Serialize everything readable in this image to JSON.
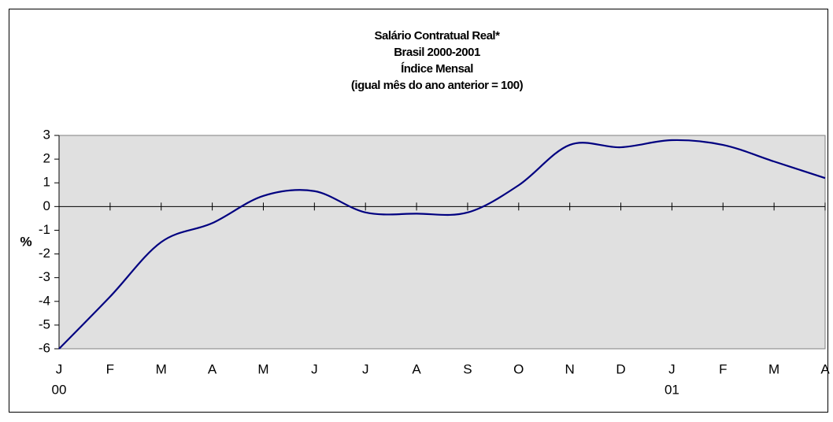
{
  "chart_data": {
    "type": "line",
    "title": [
      "Salário Contratual Real*",
      "Brasil 2000-2001",
      "Índice Mensal",
      "(igual mês do ano anterior = 100)"
    ],
    "y_label": "%",
    "categories": [
      "J",
      "F",
      "M",
      "A",
      "M",
      "J",
      "J",
      "A",
      "S",
      "O",
      "N",
      "D",
      "J",
      "F",
      "M",
      "A"
    ],
    "x_groups": [
      {
        "label": "00",
        "at": 0
      },
      {
        "label": "01",
        "at": 12
      }
    ],
    "series": [
      {
        "name": "Salário Contratual Real",
        "color": "#000080",
        "values": [
          -6.0,
          -3.8,
          -1.5,
          -0.7,
          0.45,
          0.65,
          -0.25,
          -0.3,
          -0.25,
          0.9,
          2.6,
          2.5,
          2.8,
          2.6,
          1.9,
          1.2
        ]
      }
    ],
    "ylim": [
      -6,
      3
    ],
    "yticks": [
      -6,
      -5,
      -4,
      -3,
      -2,
      -1,
      0,
      1,
      2,
      3
    ],
    "plot_background": "#e0e0e0"
  }
}
